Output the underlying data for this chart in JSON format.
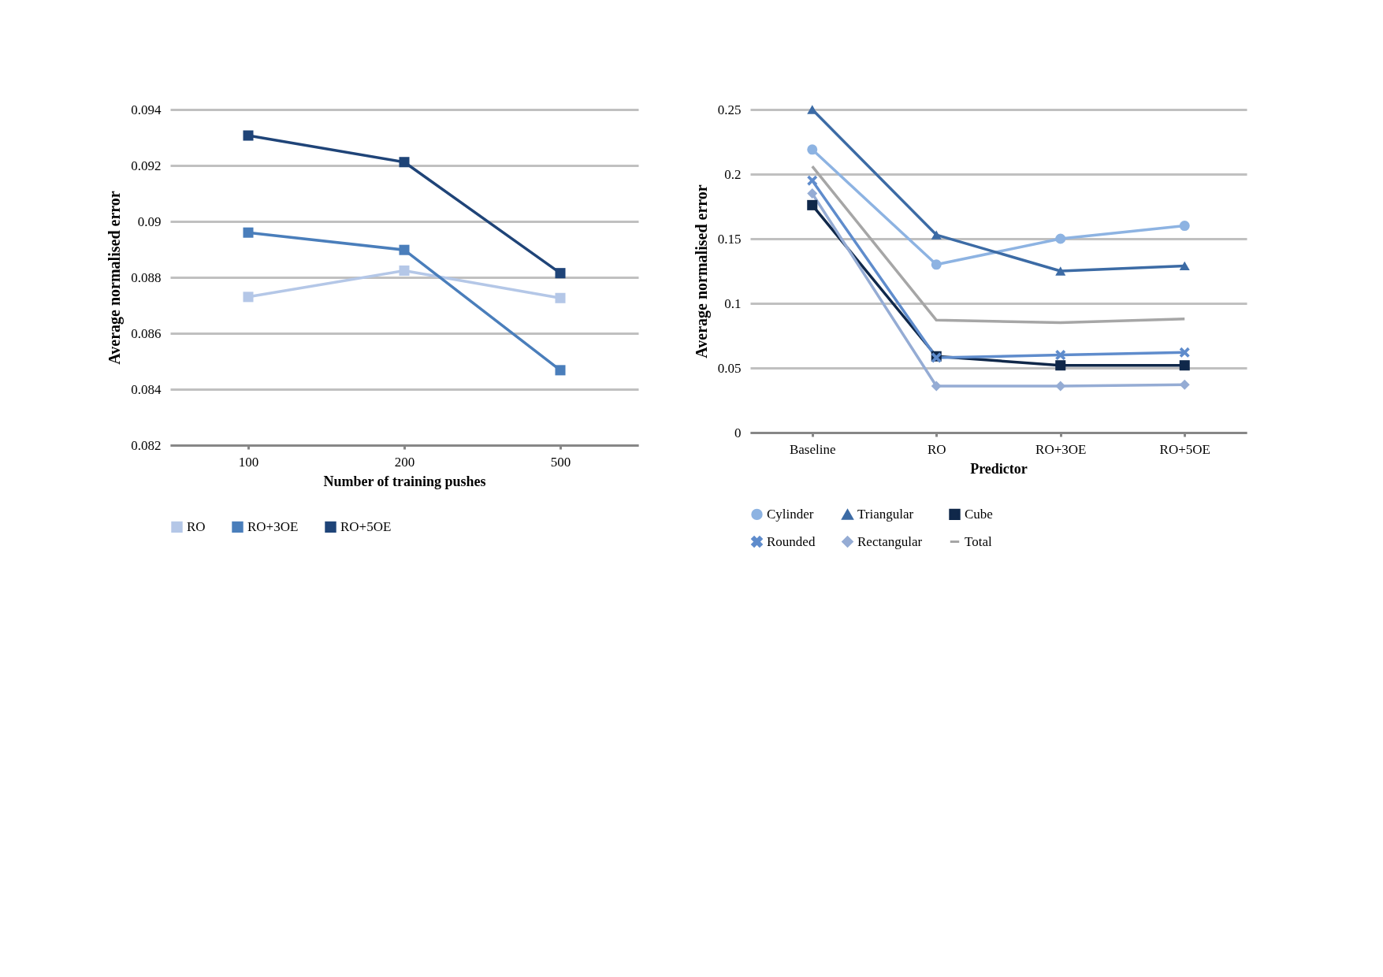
{
  "chart_data": [
    {
      "type": "line",
      "xlabel": "Number of training pushes",
      "ylabel": "Average normalised error",
      "categories": [
        "100",
        "200",
        "500"
      ],
      "ylim": [
        0.082,
        0.094
      ],
      "yticks": [
        0.082,
        0.084,
        0.086,
        0.088,
        0.09,
        0.092,
        0.094
      ],
      "grid": "y",
      "legend": "bottom",
      "series": [
        {
          "name": "RO",
          "color": "#b4c7e7",
          "marker": "square",
          "values": [
            0.0873,
            0.08824,
            0.08726
          ]
        },
        {
          "name": "RO+3OE",
          "color": "#4a7ebb",
          "marker": "square",
          "values": [
            0.0896,
            0.08898,
            0.08468
          ]
        },
        {
          "name": "RO+5OE",
          "color": "#1f4478",
          "marker": "square",
          "values": [
            0.09307,
            0.09212,
            0.08815
          ]
        }
      ]
    },
    {
      "type": "line",
      "xlabel": "Predictor",
      "ylabel": "Average normalised error",
      "categories": [
        "Baseline",
        "RO",
        "RO+3OE",
        "RO+5OE"
      ],
      "ylim": [
        0,
        0.25
      ],
      "yticks": [
        0,
        0.05,
        0.1,
        0.15,
        0.2,
        0.25
      ],
      "grid": "y",
      "legend": "bottom",
      "series": [
        {
          "name": "Cylinder",
          "color": "#8db3e2",
          "marker": "circle",
          "values": [
            0.219,
            0.13,
            0.15,
            0.16
          ]
        },
        {
          "name": "Triangular",
          "color": "#3c6ba5",
          "marker": "triangle",
          "values": [
            0.25,
            0.153,
            0.125,
            0.129
          ]
        },
        {
          "name": "Cube",
          "color": "#10284a",
          "marker": "square",
          "values": [
            0.176,
            0.059,
            0.052,
            0.052
          ]
        },
        {
          "name": "Rounded",
          "color": "#5f8ccc",
          "marker": "cross",
          "values": [
            0.195,
            0.058,
            0.06,
            0.062
          ]
        },
        {
          "name": "Rectangular",
          "color": "#95acd4",
          "marker": "diamond",
          "values": [
            0.185,
            0.036,
            0.036,
            0.037
          ]
        },
        {
          "name": "Total",
          "color": "#a6a6a6",
          "marker": "none",
          "values": [
            0.206,
            0.087,
            0.085,
            0.088
          ]
        }
      ]
    }
  ]
}
